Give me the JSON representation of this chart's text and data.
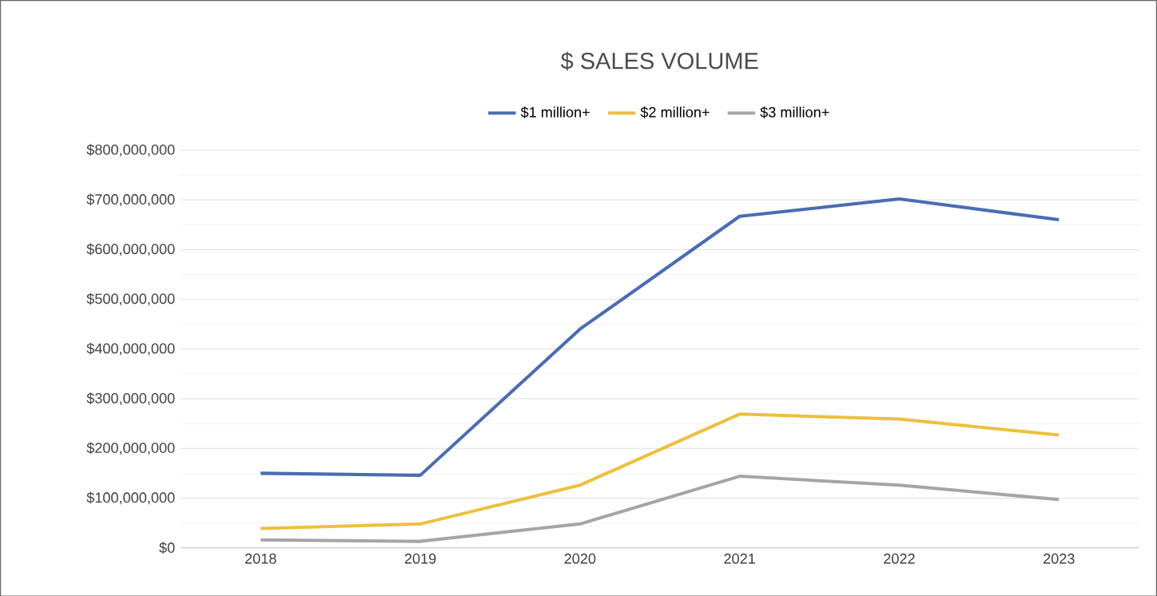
{
  "chart_data": {
    "type": "line",
    "title": "$ SALES VOLUME",
    "categories": [
      "2018",
      "2019",
      "2020",
      "2021",
      "2022",
      "2023"
    ],
    "series": [
      {
        "name": "$1 million+",
        "color": "#4a6cb3",
        "values": [
          150000000,
          146000000,
          440000000,
          667000000,
          702000000,
          660000000
        ]
      },
      {
        "name": "$2 million+",
        "color": "#ecc03e",
        "values": [
          39000000,
          48000000,
          126000000,
          269000000,
          259000000,
          227000000
        ]
      },
      {
        "name": "$3 million+",
        "color": "#a5a5a5",
        "values": [
          16000000,
          13000000,
          48000000,
          144000000,
          126000000,
          97000000
        ]
      }
    ],
    "ylim": [
      0,
      800000000
    ],
    "yticks": [
      {
        "value": 0,
        "label": "$0"
      },
      {
        "value": 100000000,
        "label": "$100,000,000"
      },
      {
        "value": 200000000,
        "label": "$200,000,000"
      },
      {
        "value": 300000000,
        "label": "$300,000,000"
      },
      {
        "value": 400000000,
        "label": "$400,000,000"
      },
      {
        "value": 500000000,
        "label": "$500,000,000"
      },
      {
        "value": 600000000,
        "label": "$600,000,000"
      },
      {
        "value": 700000000,
        "label": "$700,000,000"
      },
      {
        "value": 800000000,
        "label": "$800,000,000"
      }
    ],
    "grid": "y",
    "legend": "top",
    "marker": "none",
    "line_style": "solid"
  }
}
